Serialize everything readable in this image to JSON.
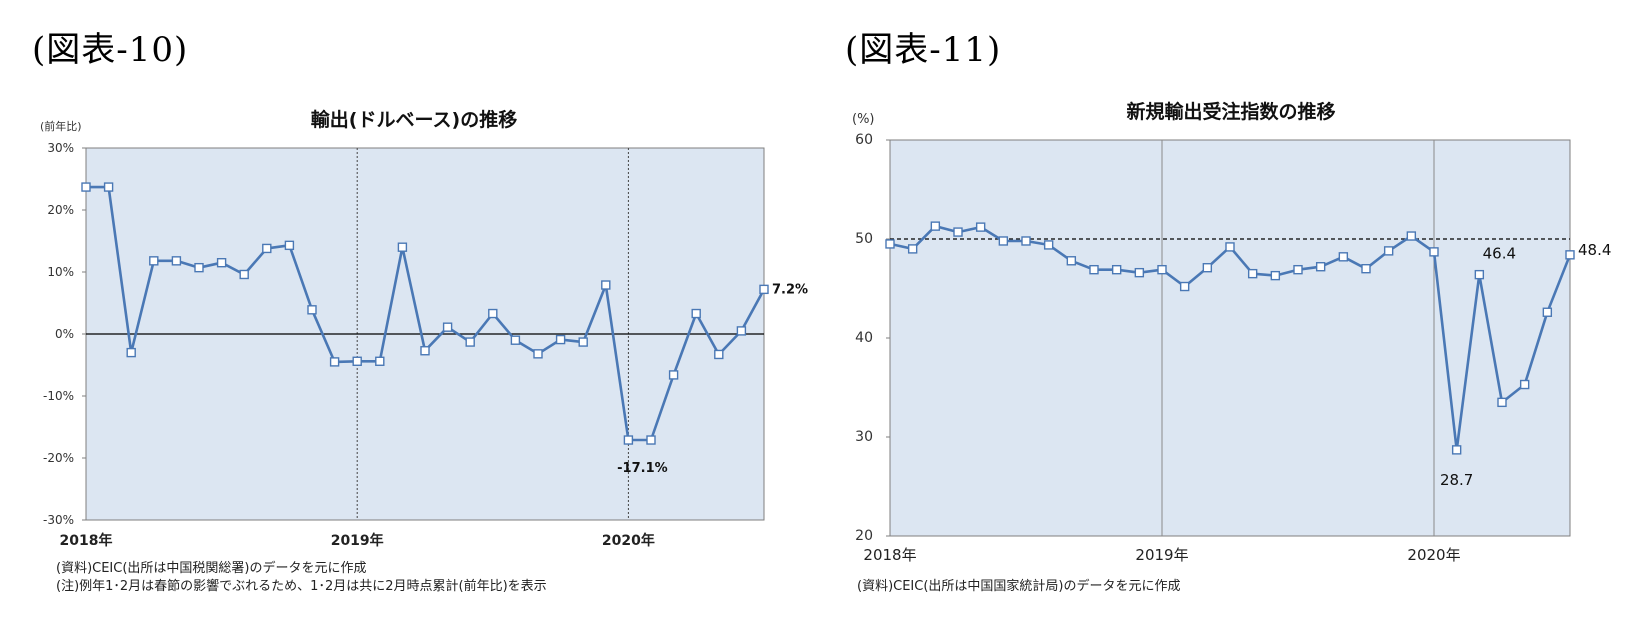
{
  "figures": [
    {
      "label": "(図表-10)",
      "notes": [
        "(資料)CEIC(出所は中国税関総署)のデータを元に作成",
        "(注)例年1･2月は春節の影響でぶれるため、1･2月は共に2月時点累計(前年比)を表示"
      ]
    },
    {
      "label": "(図表-11)",
      "notes": [
        "(資料)CEIC(出所は中国国家統計局)のデータを元に作成"
      ]
    }
  ],
  "chart_data": [
    {
      "type": "line",
      "title": "輸出(ドルベース)の推移",
      "ylabel": "(前年比)",
      "ylim": [
        -30,
        30
      ],
      "yticks": [
        30,
        20,
        10,
        0,
        -10,
        -20,
        -30
      ],
      "ytick_labels": [
        "30%",
        "20%",
        "10%",
        "0%",
        "-10%",
        "-20%",
        "-30%"
      ],
      "xlim": [
        0,
        30
      ],
      "xticks": [
        0,
        12,
        24
      ],
      "xtick_labels": [
        "2018年",
        "2019年",
        "2020年"
      ],
      "series": [
        {
          "values": [
            23.7,
            23.7,
            -3.0,
            11.8,
            11.8,
            10.7,
            11.5,
            9.6,
            13.8,
            14.3,
            3.9,
            -4.5,
            -4.4,
            -4.4,
            14.0,
            -2.7,
            1.1,
            -1.3,
            3.3,
            -1.0,
            -3.2,
            -0.9,
            -1.3,
            7.9,
            -17.1,
            -17.1,
            -6.6,
            3.3,
            -3.3,
            0.5,
            7.2
          ],
          "color": "#4a78b5"
        }
      ],
      "annotations": [
        {
          "index": 24,
          "text": "-17.1%"
        },
        {
          "index": 30,
          "text": "7.2%"
        }
      ],
      "zero_line": true,
      "year_dividers": [
        12,
        24
      ],
      "background": "#dce6f2"
    },
    {
      "type": "line",
      "title": "新規輸出受注指数の推移",
      "ylabel": "(%)",
      "ylim": [
        20,
        60
      ],
      "yticks": [
        60,
        50,
        40,
        30,
        20
      ],
      "ytick_labels": [
        "60",
        "50",
        "40",
        "30",
        "20"
      ],
      "xlim": [
        0,
        30
      ],
      "xticks": [
        0,
        12,
        24
      ],
      "xtick_labels": [
        "2018年",
        "2019年",
        "2020年"
      ],
      "series": [
        {
          "values": [
            49.5,
            49.0,
            51.3,
            50.7,
            51.2,
            49.8,
            49.8,
            49.4,
            47.8,
            46.9,
            46.9,
            46.6,
            46.9,
            45.2,
            47.1,
            49.2,
            46.5,
            46.3,
            46.9,
            47.2,
            48.2,
            47.0,
            48.8,
            50.3,
            48.7,
            28.7,
            46.4,
            33.5,
            35.3,
            42.6,
            48.4
          ],
          "color": "#4a78b5"
        }
      ],
      "reference_line": 50,
      "annotations": [
        {
          "index": 25,
          "text": "28.7"
        },
        {
          "index": 26,
          "text": "46.4"
        },
        {
          "index": 30,
          "text": "48.4"
        }
      ],
      "year_dividers": [
        12,
        24
      ],
      "background": "#dce6f2"
    }
  ]
}
